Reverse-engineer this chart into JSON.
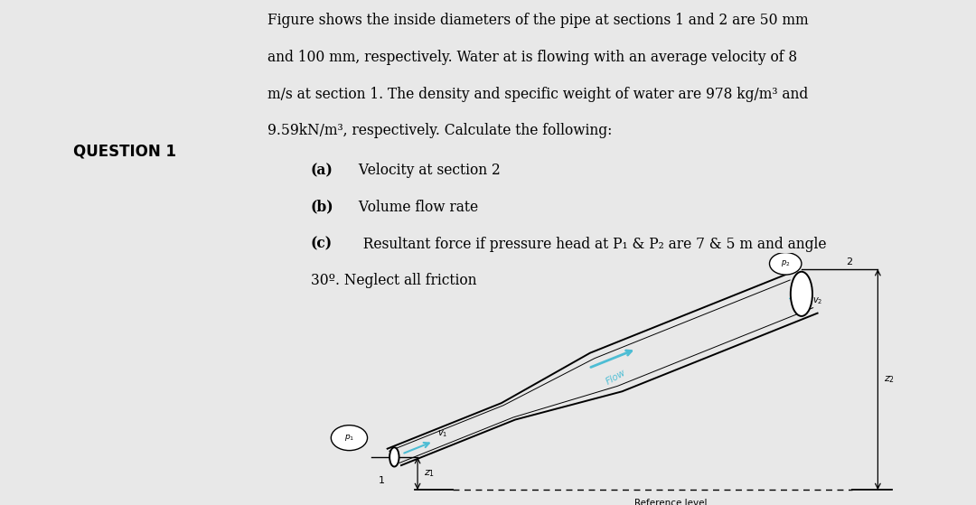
{
  "bg_left_color": "#4DBDD4",
  "bg_white_color": "#ffffff",
  "bg_right_color": "#e8e8e8",
  "question_label": "QUESTION 1",
  "question_label_fontsize": 12,
  "body_text_fontsize": 11.2,
  "body_lines": [
    "Figure shows the inside diameters of the pipe at sections 1 and 2 are 50 mm",
    "and 100 mm, respectively. Water at is flowing with an average velocity of 8",
    "m/s at section 1. The density and specific weight of water are 978 kg/m³ and",
    "9.59kN/m³, respectively. Calculate the following:"
  ],
  "item_a_bold": "(a)",
  "item_a_text": " Velocity at section 2",
  "item_b_bold": "(b)",
  "item_b_text": " Volume flow rate",
  "item_c_bold": "(c)",
  "item_c_text": "  Resultant force if pressure head at P₁ & P₂ are 7 & 5 m and angle",
  "item_d_text": "30º. Neglect all friction",
  "flow_color": "#4DBDD4",
  "pipe_color": "#000000",
  "ref_text": "Reference level",
  "label_1": "1",
  "label_2": "2",
  "label_z1": "z₁",
  "label_z2": "z₂",
  "label_p1": "p₁",
  "label_p2": "p₂",
  "label_v1": "v₁",
  "label_v2": "v₂",
  "label_flow": "Flow"
}
